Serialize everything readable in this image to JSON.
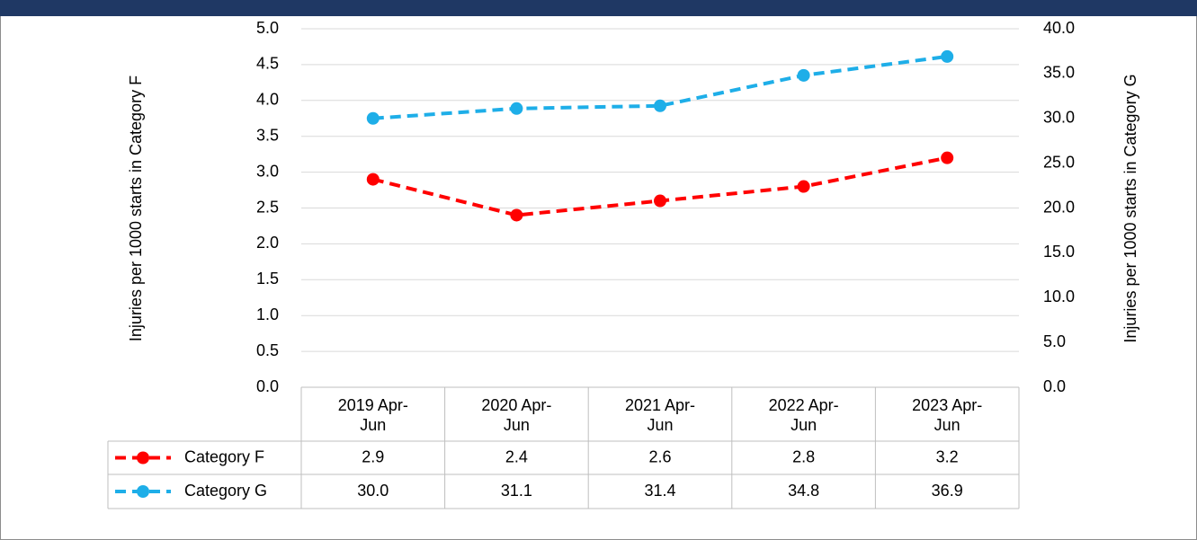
{
  "chart_data": {
    "type": "line",
    "categories": [
      "2019 Apr-Jun",
      "2020 Apr-Jun",
      "2021 Apr-Jun",
      "2022 Apr-Jun",
      "2023 Apr-Jun"
    ],
    "y_label": "Injuries per 1000 starts in Category F",
    "y2_label": "Injuries per 1000 starts in Category G",
    "series": [
      {
        "name": "Category F",
        "color": "#ff0000",
        "values": [
          2.9,
          2.4,
          2.6,
          2.8,
          3.2
        ]
      },
      {
        "name": "Category G",
        "color": "#1eaee8",
        "axis": "y2",
        "values": [
          30,
          31.1,
          31.4,
          34.8,
          36.9
        ],
        "value_labels": [
          "30.0",
          "31.1",
          "31.4",
          "34.8",
          "36.9"
        ]
      }
    ],
    "ylim": [
      0,
      5
    ],
    "yticks": [
      {
        "value": 0,
        "label": "0.0"
      },
      0.5,
      {
        "value": 1,
        "label": "1.0"
      },
      1.5,
      {
        "value": 2,
        "label": "2.0"
      },
      2.5,
      {
        "value": 3,
        "label": "3.0"
      },
      3.5,
      {
        "value": 4,
        "label": "4.0"
      },
      4.5,
      {
        "value": 5,
        "label": "5.0"
      }
    ],
    "y2lim": [
      0,
      40
    ],
    "y2ticks": [
      {
        "value": 0,
        "label": "0.0"
      },
      {
        "value": 5,
        "label": "5.0"
      },
      {
        "value": 10,
        "label": "10.0"
      },
      {
        "value": 15,
        "label": "15.0"
      },
      {
        "value": 20,
        "label": "20.0"
      },
      {
        "value": 25,
        "label": "25.0"
      },
      {
        "value": 30,
        "label": "30.0"
      },
      {
        "value": 35,
        "label": "35.0"
      },
      {
        "value": 40,
        "label": "40.0"
      }
    ],
    "grid": true
  }
}
